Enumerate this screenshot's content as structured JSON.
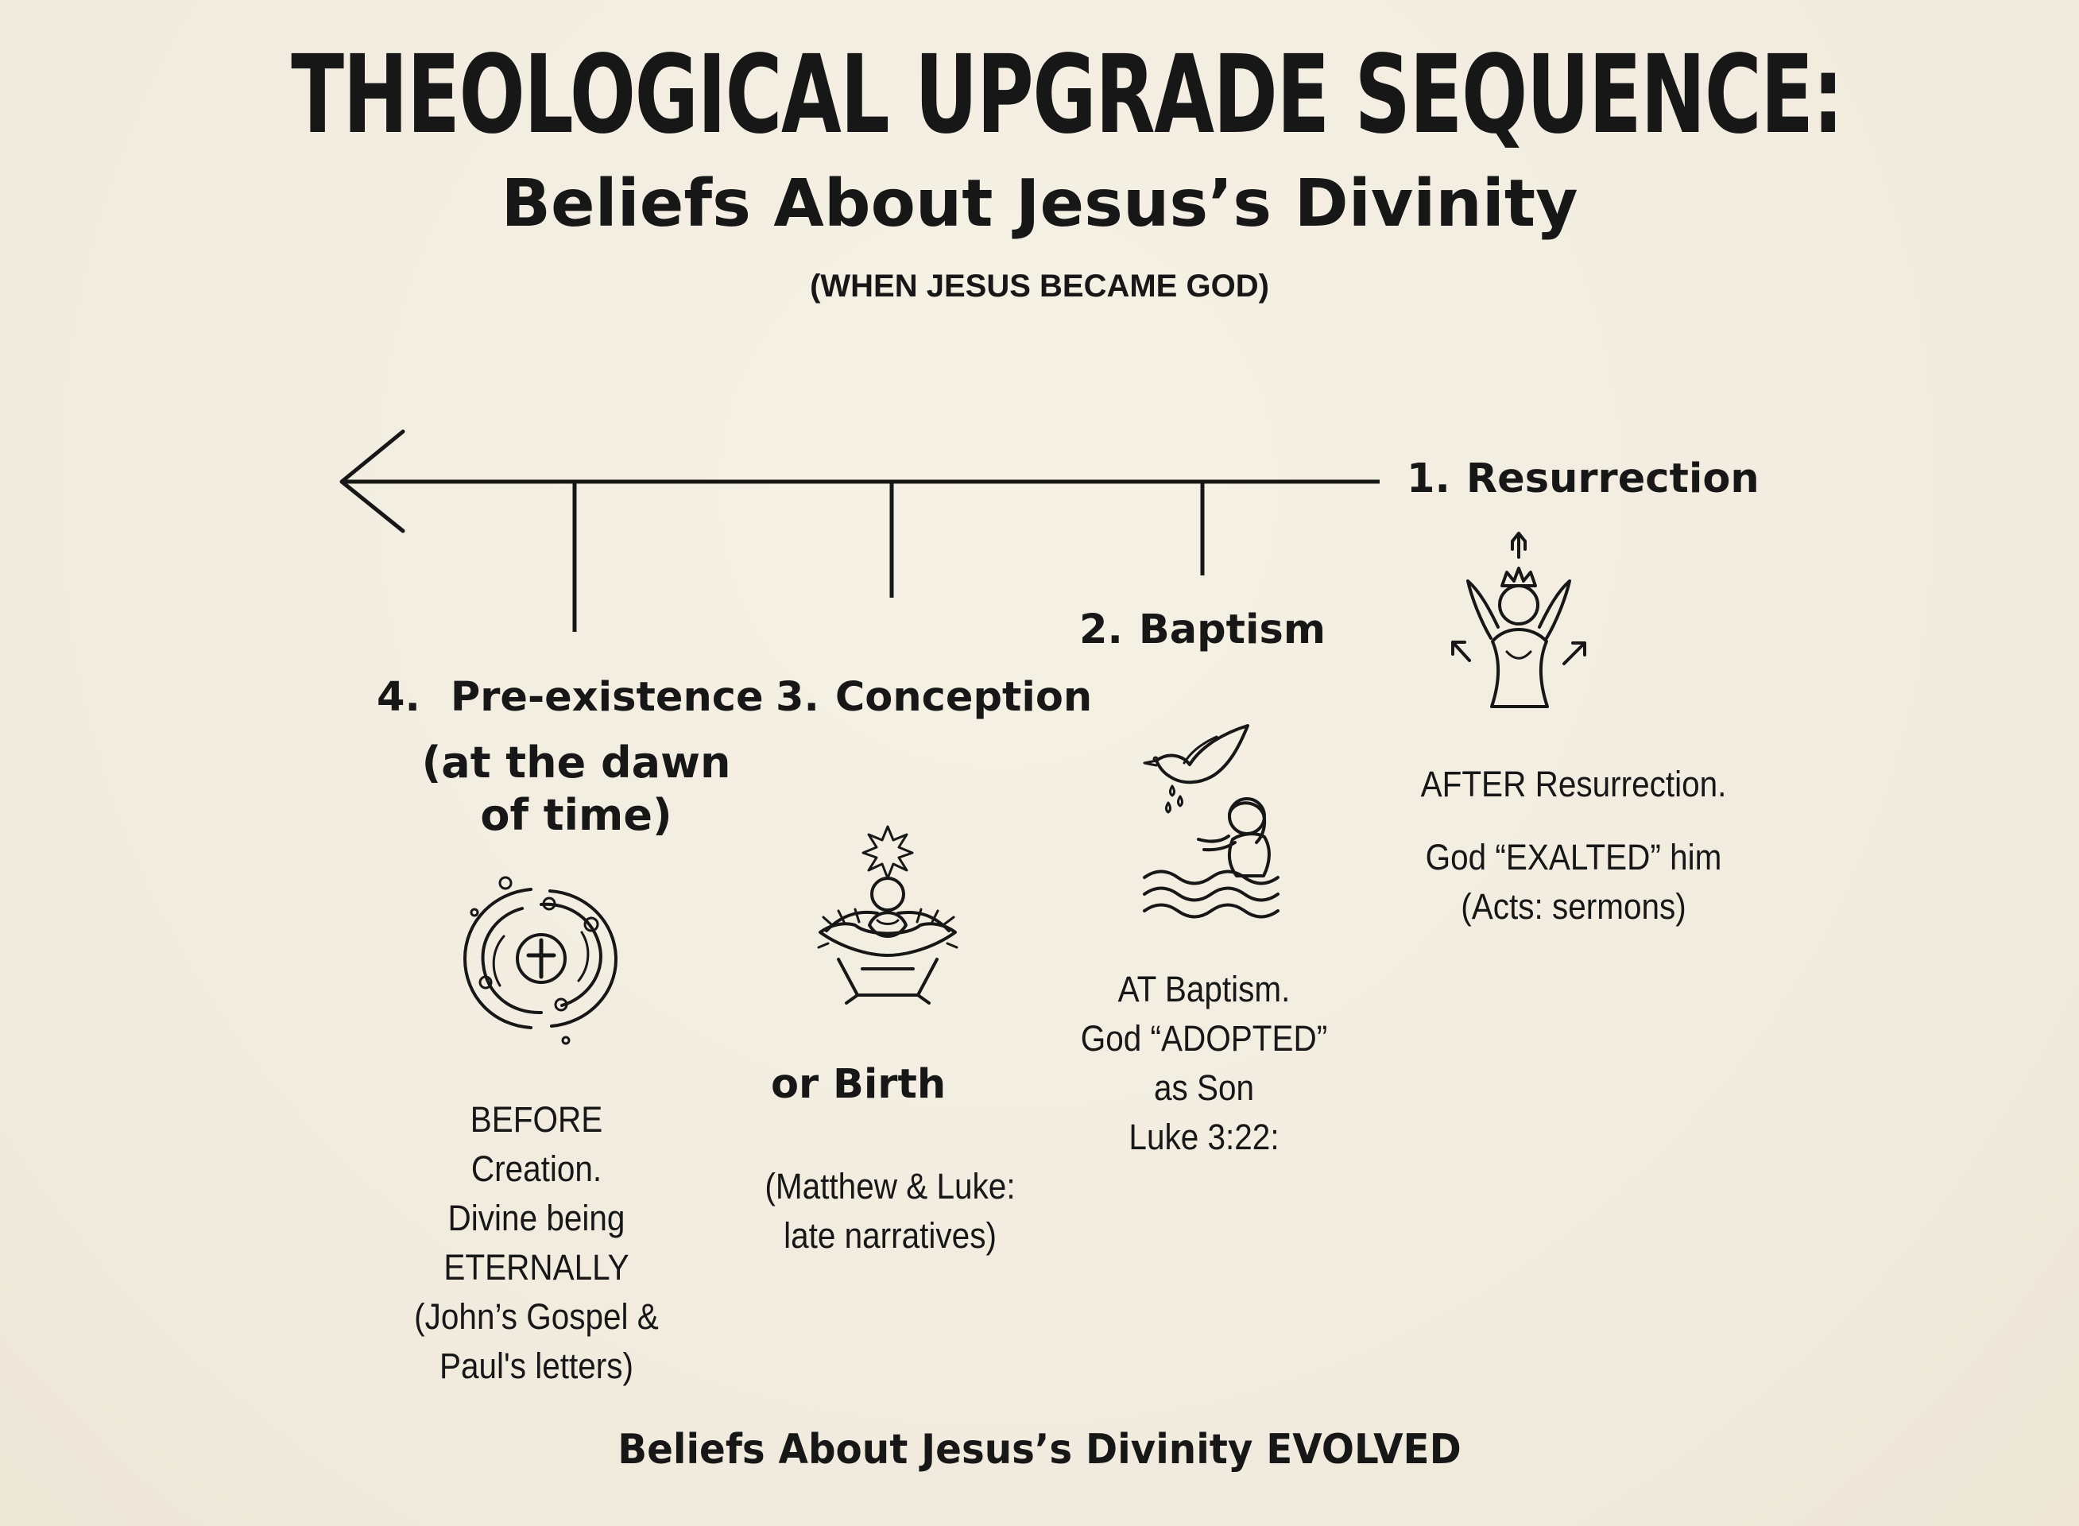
{
  "heading": {
    "title": "THEOLOGICAL UPGRADE SEQUENCE:",
    "subtitle": "Beliefs About Jesus’s Divinity",
    "parenthetical": "(WHEN JESUS BECAME GOD)"
  },
  "stages": {
    "resurrection": {
      "number": "1.",
      "title": "Resurrection",
      "icon": "exalted-figure-icon",
      "lines": [
        "AFTER  Resurrection.",
        "God  “EXALTED” him",
        "(Acts: sermons)"
      ]
    },
    "baptism": {
      "number": "2.",
      "title": "Baptism",
      "icon": "dove-baptism-icon",
      "lines": [
        "AT Baptism.",
        "God “ADOPTED”",
        "as Son",
        "Luke 3:22:"
      ]
    },
    "conception": {
      "number": "3.",
      "title": "Conception",
      "icon": "manger-star-icon",
      "alternate": "or  Birth",
      "lines": [
        "(Matthew & Luke:",
        "late narratives)"
      ]
    },
    "preexistence": {
      "number": "4.",
      "title": "Pre-existence",
      "subtitle_lines": [
        "(at the dawn",
        "of time)"
      ],
      "icon": "cosmic-cross-icon",
      "lines": [
        "BEFORE",
        "Creation.",
        "Divine being",
        "ETERNALLY",
        "(John’s Gospel &",
        "Paul's letters)"
      ]
    }
  },
  "footer": "Beliefs About Jesus’s Divinity EVOLVED",
  "colors": {
    "background": "#f3eee1",
    "ink": "#171717"
  }
}
